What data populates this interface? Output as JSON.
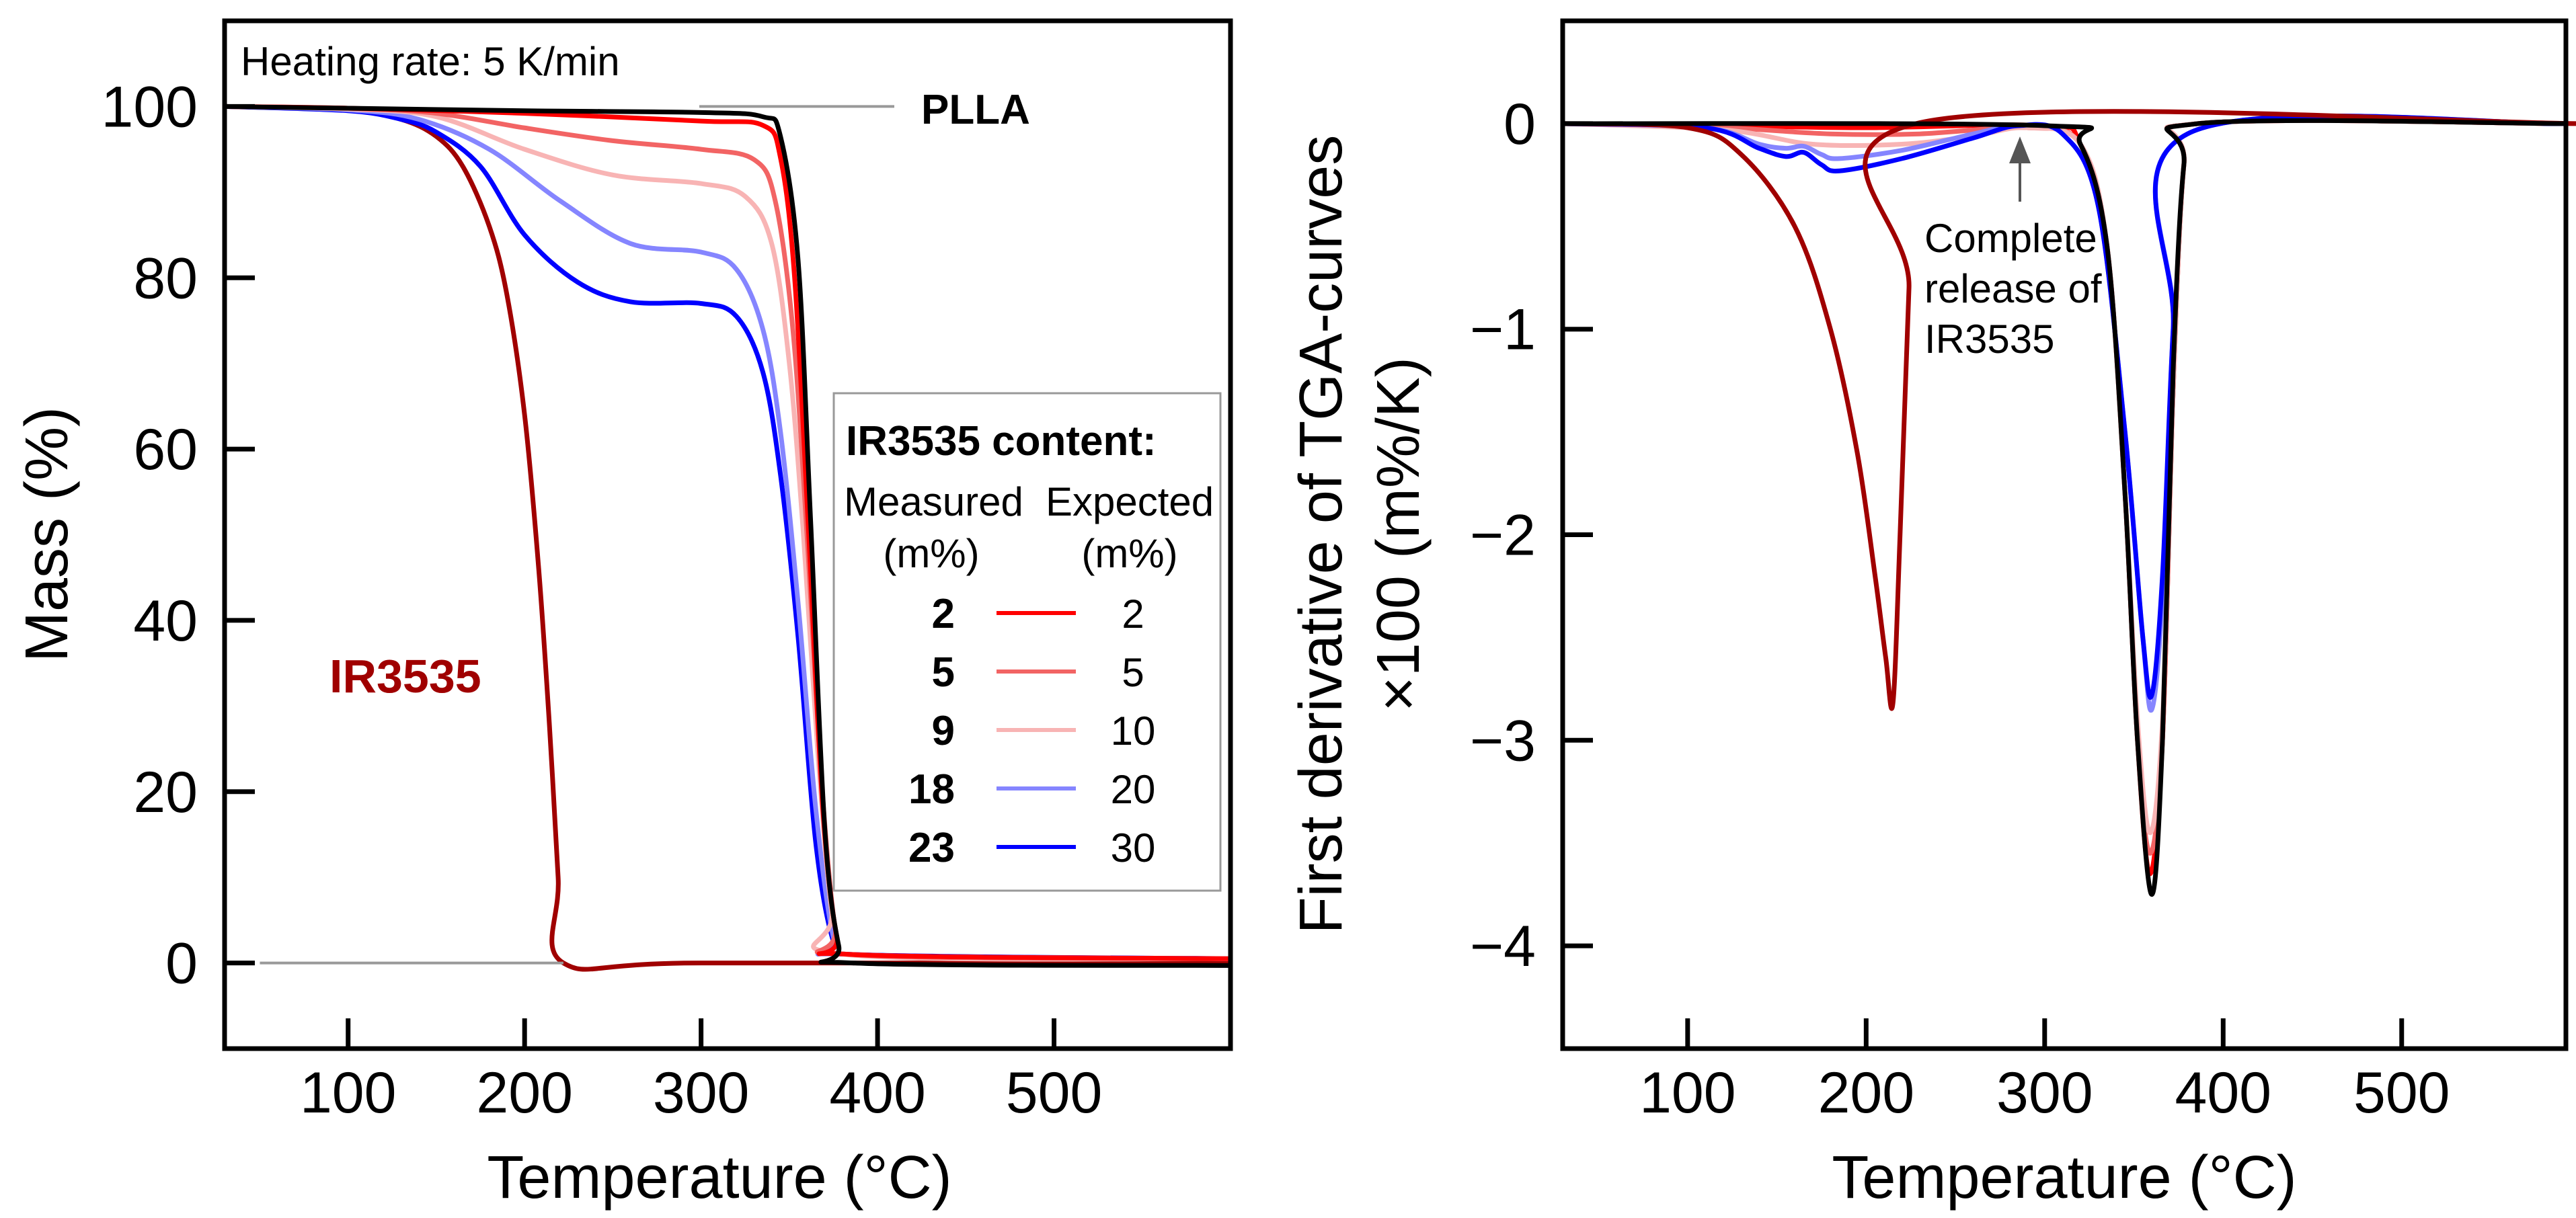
{
  "chart_data": [
    {
      "type": "line",
      "title": "",
      "xlabel": "Temperature (°C)",
      "ylabel": "Mass (%)",
      "xlim": [
        30,
        600
      ],
      "ylim": [
        -10,
        110
      ],
      "xticks": [
        100,
        200,
        300,
        400,
        500
      ],
      "yticks": [
        0,
        20,
        40,
        60,
        80,
        100
      ],
      "grid": false,
      "annotations": {
        "heating_rate": "Heating rate: 5 K/min",
        "plla": "PLLA",
        "ir3535": "IR3535"
      },
      "legend": {
        "placement": "right",
        "title": "IR3535 content:",
        "col_measured": "Measured",
        "col_expected": "Expected",
        "unit": "(m%)",
        "entries": [
          {
            "measured": "2",
            "expected": "2",
            "color": "#ff0000"
          },
          {
            "measured": "5",
            "expected": "5",
            "color": "#f26464"
          },
          {
            "measured": "9",
            "expected": "10",
            "color": "#f8b4b4"
          },
          {
            "measured": "18",
            "expected": "20",
            "color": "#8585ff"
          },
          {
            "measured": "23",
            "expected": "30",
            "color": "#0000ff"
          }
        ]
      },
      "series": [
        {
          "name": "IR3535",
          "color": "#a00000",
          "x": [
            30,
            100,
            130,
            150,
            165,
            180,
            190,
            200,
            208,
            214,
            219,
            222,
            300,
            600
          ],
          "y": [
            100,
            99.6,
            98.5,
            96.5,
            93,
            86,
            78,
            64,
            46,
            28,
            10,
            0,
            0,
            0
          ]
        },
        {
          "name": "30 m%",
          "color": "#0000ff",
          "x": [
            30,
            100,
            130,
            150,
            175,
            200,
            230,
            260,
            300,
            320,
            335,
            345,
            355,
            365,
            375,
            385,
            600
          ],
          "y": [
            100,
            99.5,
            98.5,
            97,
            93,
            85,
            79.5,
            77.2,
            77,
            75.5,
            69,
            57,
            38,
            14,
            2.5,
            1,
            0.5
          ]
        },
        {
          "name": "20 m%",
          "color": "#8585ff",
          "x": [
            30,
            100,
            140,
            180,
            220,
            260,
            300,
            320,
            335,
            345,
            355,
            365,
            375,
            385,
            600
          ],
          "y": [
            100,
            99.6,
            98.5,
            95,
            89,
            84,
            83,
            81,
            74,
            62,
            42,
            18,
            3,
            1,
            0.5
          ]
        },
        {
          "name": "10 m%",
          "color": "#f8b4b4",
          "x": [
            30,
            100,
            150,
            200,
            250,
            300,
            325,
            340,
            350,
            358,
            366,
            374,
            382,
            600
          ],
          "y": [
            100,
            99.7,
            98.8,
            95,
            92,
            91,
            89.5,
            84,
            70,
            50,
            25,
            6,
            1,
            0.5
          ]
        },
        {
          "name": "5 m%",
          "color": "#f26464",
          "x": [
            30,
            100,
            150,
            200,
            250,
            300,
            330,
            342,
            352,
            360,
            368,
            376,
            384,
            600
          ],
          "y": [
            100,
            99.8,
            99.2,
            97.5,
            96,
            95,
            93.8,
            89,
            74,
            50,
            22,
            4,
            1,
            0.5
          ]
        },
        {
          "name": "2 m%",
          "color": "#ff0000",
          "x": [
            30,
            100,
            200,
            300,
            335,
            345,
            353,
            361,
            369,
            377,
            385,
            600
          ],
          "y": [
            100,
            99.8,
            99.2,
            98.3,
            97.8,
            94,
            80,
            50,
            18,
            3,
            1,
            0.5
          ]
        },
        {
          "name": "PLLA",
          "color": "#000000",
          "x": [
            30,
            100,
            200,
            300,
            335,
            345,
            355,
            362,
            370,
            378,
            386,
            600
          ],
          "y": [
            100,
            99.8,
            99.5,
            99.3,
            98.8,
            96.5,
            82,
            52,
            16,
            2,
            0,
            -0.3
          ]
        }
      ]
    },
    {
      "type": "line",
      "title": "",
      "xlabel": "Temperature (°C)",
      "ylabel": "First derivative of TGA-curves ×100 (m%/K)",
      "ylabel_line1": "First derivative of TGA-curves",
      "ylabel_line2": "×100 (m%/K)",
      "xlim": [
        30,
        592
      ],
      "ylim": [
        -4.5,
        0.5
      ],
      "xticks": [
        100,
        200,
        300,
        400,
        500
      ],
      "yticks": [
        0,
        -1,
        -2,
        -3,
        -4
      ],
      "ytick_labels": [
        "0",
        "−1",
        "−2",
        "−3",
        "−4"
      ],
      "grid": false,
      "annotations": {
        "release_line1": "Complete",
        "release_line2": "release of",
        "release_line3": "IR3535",
        "release_temp": 285
      },
      "series": [
        {
          "name": "2 m%",
          "color": "#ff0000",
          "x": [
            30,
            120,
            200,
            300,
            320,
            335,
            345,
            352,
            359,
            366,
            372,
            378,
            386,
            592
          ],
          "y": [
            0,
            -0.01,
            -0.02,
            -0.01,
            -0.1,
            -0.6,
            -1.8,
            -3.0,
            -3.65,
            -3.0,
            -1.3,
            -0.2,
            0,
            0
          ]
        },
        {
          "name": "5 m%",
          "color": "#f26464",
          "x": [
            30,
            120,
            180,
            230,
            290,
            320,
            335,
            345,
            352,
            359,
            366,
            372,
            378,
            386,
            592
          ],
          "y": [
            0,
            -0.02,
            -0.05,
            -0.05,
            -0.02,
            -0.1,
            -0.6,
            -1.8,
            -3.0,
            -3.55,
            -3.0,
            -1.3,
            -0.2,
            0,
            0
          ]
        },
        {
          "name": "10 m%",
          "color": "#f8b4b4",
          "x": [
            30,
            120,
            170,
            220,
            260,
            290,
            320,
            335,
            345,
            352,
            359,
            366,
            372,
            378,
            386,
            592
          ],
          "y": [
            0,
            -0.03,
            -0.1,
            -0.1,
            -0.06,
            -0.02,
            -0.1,
            -0.6,
            -1.8,
            -2.9,
            -3.45,
            -2.9,
            -1.3,
            -0.2,
            0,
            0
          ]
        },
        {
          "name": "20 m%",
          "color": "#8585ff",
          "x": [
            30,
            110,
            140,
            155,
            165,
            175,
            185,
            220,
            260,
            285,
            310,
            330,
            345,
            355,
            360,
            366,
            372,
            380,
            592
          ],
          "y": [
            0,
            -0.02,
            -0.1,
            -0.12,
            -0.11,
            -0.15,
            -0.17,
            -0.13,
            -0.05,
            -0.01,
            -0.05,
            -0.4,
            -1.5,
            -2.5,
            -2.85,
            -2.3,
            -1.0,
            -0.05,
            0
          ]
        },
        {
          "name": "30 m%",
          "color": "#0000ff",
          "x": [
            30,
            110,
            140,
            155,
            165,
            175,
            185,
            220,
            260,
            285,
            310,
            330,
            345,
            355,
            360,
            366,
            372,
            380,
            592
          ],
          "y": [
            0,
            -0.02,
            -0.12,
            -0.16,
            -0.14,
            -0.2,
            -0.23,
            -0.17,
            -0.07,
            -0.01,
            -0.05,
            -0.4,
            -1.5,
            -2.5,
            -2.78,
            -2.2,
            -1.0,
            -0.05,
            0
          ]
        },
        {
          "name": "IR3535",
          "color": "#a00000",
          "x": [
            30,
            100,
            130,
            160,
            180,
            195,
            205,
            211,
            215,
            219,
            224,
            228,
            600
          ],
          "y": [
            0,
            -0.02,
            -0.15,
            -0.5,
            -1.0,
            -1.6,
            -2.2,
            -2.6,
            -2.82,
            -2.0,
            -0.8,
            0,
            0
          ]
        },
        {
          "name": "PLLA",
          "color": "#000000",
          "x": [
            30,
            300,
            320,
            335,
            345,
            352,
            360,
            366,
            372,
            378,
            386,
            592
          ],
          "y": [
            0,
            -0.01,
            -0.1,
            -0.6,
            -1.8,
            -3.0,
            -3.75,
            -3.0,
            -1.2,
            -0.2,
            0,
            0
          ]
        }
      ]
    }
  ]
}
